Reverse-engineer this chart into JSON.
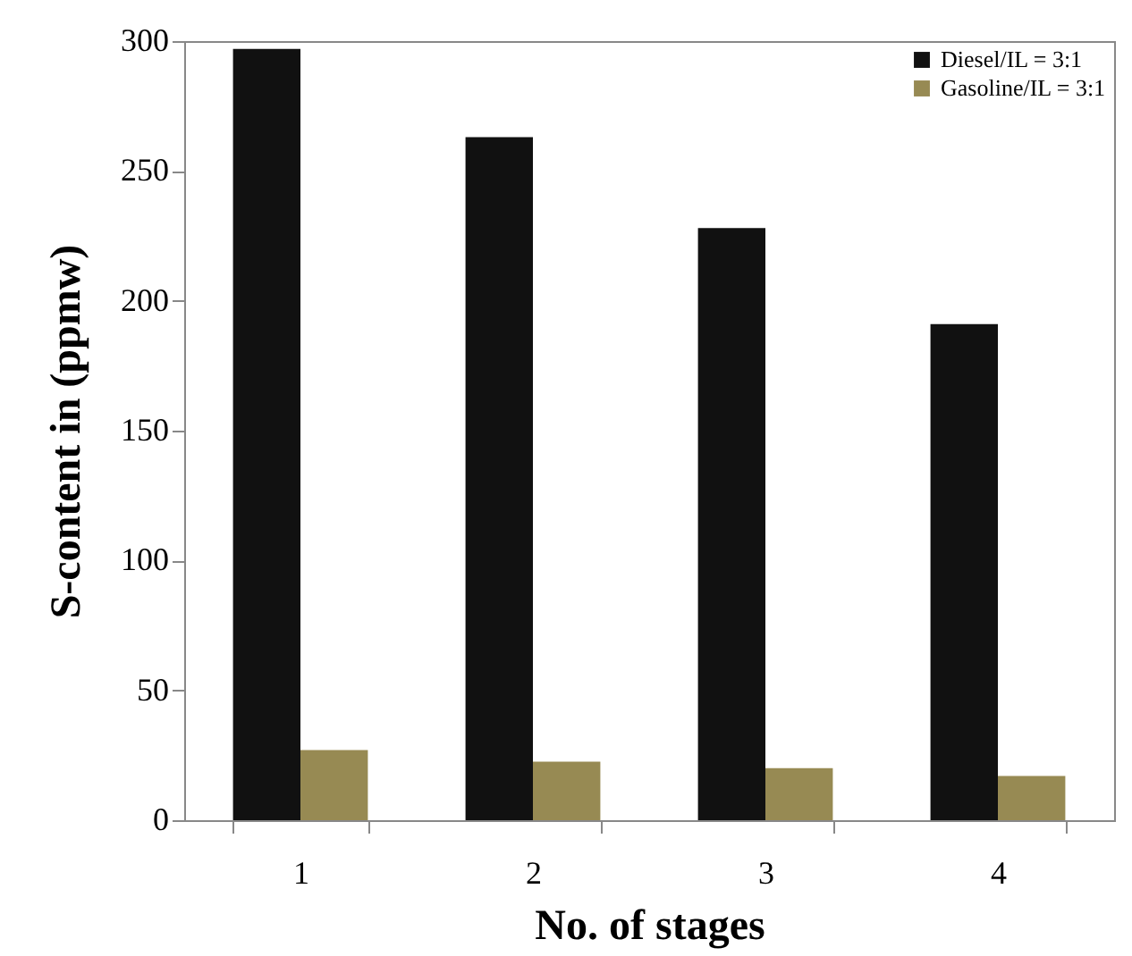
{
  "chart_data": {
    "type": "bar",
    "xlabel": "No. of stages",
    "ylabel": "S-content in (ppmw)",
    "categories": [
      "1",
      "2",
      "3",
      "4"
    ],
    "series": [
      {
        "name": "Diesel/IL = 3:1",
        "color": "#111111",
        "values": [
          297,
          263,
          228,
          191
        ]
      },
      {
        "name": "Gasoline/IL = 3:1",
        "color": "#978a53",
        "values": [
          27,
          22.5,
          20,
          17
        ]
      }
    ],
    "ylim": [
      0,
      300
    ],
    "yticks": [
      0,
      50,
      100,
      150,
      200,
      250,
      300
    ],
    "legend": "top right"
  }
}
